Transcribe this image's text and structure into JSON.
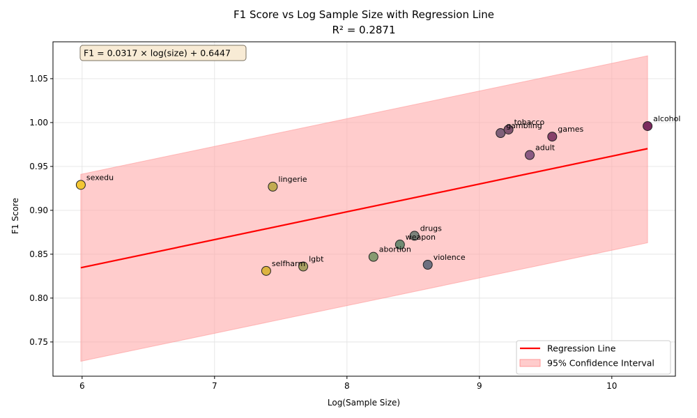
{
  "chart_data": {
    "type": "scatter",
    "title": "F1 Score vs Log Sample Size with Regression Line",
    "subtitle": "R² = 0.2871",
    "xlabel": "Log(Sample Size)",
    "ylabel": "F1 Score",
    "xlim": [
      5.78,
      10.48
    ],
    "ylim": [
      0.711,
      1.092
    ],
    "xticks": [
      6,
      7,
      8,
      9,
      10
    ],
    "yticks": [
      0.75,
      0.8,
      0.85,
      0.9,
      0.95,
      1.0,
      1.05
    ],
    "xtick_labels": [
      "6",
      "7",
      "8",
      "9",
      "10"
    ],
    "ytick_labels": [
      "0.75",
      "0.80",
      "0.85",
      "0.90",
      "0.95",
      "1.00",
      "1.05"
    ],
    "grid": true,
    "points": [
      {
        "label": "sexedu",
        "x": 5.99,
        "y": 0.929,
        "color": "#f3c634"
      },
      {
        "label": "lingerie",
        "x": 7.44,
        "y": 0.927,
        "color": "#c2ab52"
      },
      {
        "label": "selfharm",
        "x": 7.39,
        "y": 0.831,
        "color": "#dcb33f"
      },
      {
        "label": "lgbt",
        "x": 7.67,
        "y": 0.836,
        "color": "#a9a063"
      },
      {
        "label": "abortion",
        "x": 8.2,
        "y": 0.847,
        "color": "#879a70"
      },
      {
        "label": "weapon",
        "x": 8.4,
        "y": 0.861,
        "color": "#6f8a72"
      },
      {
        "label": "drugs",
        "x": 8.51,
        "y": 0.871,
        "color": "#7c837b"
      },
      {
        "label": "violence",
        "x": 8.61,
        "y": 0.838,
        "color": "#6e7080"
      },
      {
        "label": "gambling",
        "x": 9.16,
        "y": 0.988,
        "color": "#7f6079"
      },
      {
        "label": "tobacco",
        "x": 9.22,
        "y": 0.992,
        "color": "#80536e"
      },
      {
        "label": "adult",
        "x": 9.38,
        "y": 0.963,
        "color": "#8a5a82"
      },
      {
        "label": "games",
        "x": 9.55,
        "y": 0.984,
        "color": "#87406a"
      },
      {
        "label": "alcohol",
        "x": 10.27,
        "y": 0.996,
        "color": "#7b2a5e"
      }
    ],
    "regression": {
      "slope": 0.0317,
      "intercept": 0.6447,
      "x_range": [
        5.99,
        10.27
      ],
      "color": "#ff0000",
      "ci_lower": [
        0.728,
        0.863
      ],
      "ci_upper": [
        0.941,
        1.076
      ],
      "ci_color": "#ffaaaa"
    },
    "equation": "F1 = 0.0317 × log(size) + 0.6447",
    "legend": {
      "position": "bottom-right",
      "entries": [
        "Regression Line",
        "95% Confidence Interval"
      ]
    }
  }
}
